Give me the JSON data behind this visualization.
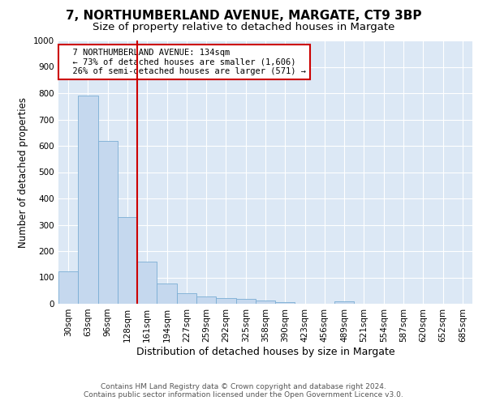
{
  "title": "7, NORTHUMBERLAND AVENUE, MARGATE, CT9 3BP",
  "subtitle": "Size of property relative to detached houses in Margate",
  "xlabel": "Distribution of detached houses by size in Margate",
  "ylabel": "Number of detached properties",
  "categories": [
    "30sqm",
    "63sqm",
    "96sqm",
    "128sqm",
    "161sqm",
    "194sqm",
    "227sqm",
    "259sqm",
    "292sqm",
    "325sqm",
    "358sqm",
    "390sqm",
    "423sqm",
    "456sqm",
    "489sqm",
    "521sqm",
    "554sqm",
    "587sqm",
    "620sqm",
    "652sqm",
    "685sqm"
  ],
  "values": [
    122,
    790,
    620,
    328,
    160,
    78,
    40,
    28,
    23,
    17,
    13,
    7,
    0,
    0,
    9,
    0,
    0,
    0,
    0,
    0,
    0
  ],
  "bar_color": "#c5d8ee",
  "bar_edgecolor": "#7aadd4",
  "redline_color": "#cc0000",
  "ylim": [
    0,
    1000
  ],
  "yticks": [
    0,
    100,
    200,
    300,
    400,
    500,
    600,
    700,
    800,
    900,
    1000
  ],
  "annotation_text": "  7 NORTHUMBERLAND AVENUE: 134sqm\n  ← 73% of detached houses are smaller (1,606)\n  26% of semi-detached houses are larger (571) →",
  "annotation_box_color": "#ffffff",
  "annotation_border_color": "#cc0000",
  "footer_text": "Contains HM Land Registry data © Crown copyright and database right 2024.\nContains public sector information licensed under the Open Government Licence v3.0.",
  "title_fontsize": 11,
  "subtitle_fontsize": 9.5,
  "tick_fontsize": 7.5,
  "ylabel_fontsize": 8.5,
  "xlabel_fontsize": 9,
  "annotation_fontsize": 7.5,
  "footer_fontsize": 6.5,
  "plot_bg_color": "#dce8f5"
}
